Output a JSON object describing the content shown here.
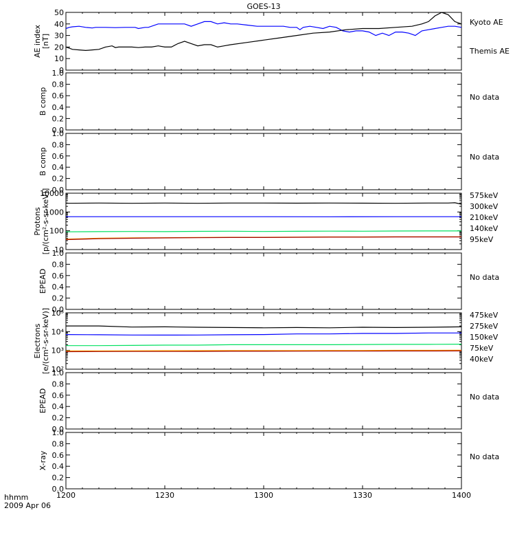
{
  "title": "GOES-13",
  "time_axis": {
    "label_line1": "hhmm",
    "label_line2": "2009 Apr 06",
    "range": [
      0,
      120
    ],
    "ticks": [
      {
        "t": 0,
        "label": "1200"
      },
      {
        "t": 30,
        "label": "1230"
      },
      {
        "t": 60,
        "label": "1300"
      },
      {
        "t": 90,
        "label": "1330"
      },
      {
        "t": 120,
        "label": "1400"
      }
    ]
  },
  "colors": {
    "black": "#000000",
    "blue": "#0000ff",
    "green": "#00e060",
    "orange": "#ffa500",
    "darkred": "#a00000"
  },
  "chart_data": [
    {
      "type": "line",
      "ylabel": [
        "AE index",
        "[nT]"
      ],
      "scale": "linear",
      "ylim": [
        0,
        50
      ],
      "ticks": [
        {
          "v": 0,
          "label": "0"
        },
        {
          "v": 10,
          "label": "10"
        },
        {
          "v": 20,
          "label": "20"
        },
        {
          "v": 30,
          "label": "30"
        },
        {
          "v": 40,
          "label": "40"
        },
        {
          "v": 50,
          "label": "50"
        }
      ],
      "legend": [
        {
          "text": "Kyoto AE",
          "color": "#0000ff"
        },
        {
          "text": "Themis AE",
          "color": "#000000"
        }
      ],
      "series": [
        {
          "name": "Kyoto AE",
          "color": "#0000ff",
          "t": [
            0,
            1,
            2,
            4,
            6,
            8,
            9,
            10,
            12,
            15,
            18,
            20,
            21,
            22,
            24,
            25,
            28,
            30,
            32,
            34,
            36,
            38,
            40,
            42,
            44,
            46,
            48,
            50,
            52,
            55,
            58,
            60,
            62,
            64,
            66,
            68,
            70,
            71,
            72,
            74,
            76,
            78,
            80,
            82,
            84,
            86,
            88,
            90,
            92,
            94,
            96,
            98,
            100,
            102,
            104,
            106,
            108,
            110,
            112,
            114,
            116,
            118,
            120
          ],
          "values": [
            36,
            37,
            37.5,
            38,
            37,
            36.5,
            37,
            37,
            37,
            36.8,
            37,
            37,
            37,
            36,
            37,
            37,
            40,
            40,
            40,
            40,
            40,
            38,
            40,
            42,
            42,
            40,
            41,
            40,
            40,
            39,
            38,
            38,
            38,
            38,
            38,
            37,
            37,
            35,
            37,
            38,
            37,
            36,
            38,
            37,
            34,
            33,
            34,
            34,
            33,
            30,
            32,
            30,
            33,
            33,
            32,
            30,
            34,
            35,
            36,
            37,
            38,
            38,
            37
          ]
        },
        {
          "name": "Themis AE",
          "color": "#000000",
          "t": [
            0,
            1,
            2,
            4,
            6,
            8,
            10,
            12,
            14,
            15,
            16,
            18,
            20,
            22,
            24,
            26,
            28,
            30,
            32,
            34,
            36,
            38,
            40,
            42,
            44,
            46,
            48,
            50,
            55,
            60,
            65,
            70,
            75,
            80,
            85,
            90,
            95,
            100,
            105,
            108,
            110,
            112,
            114,
            116,
            118,
            120
          ],
          "values": [
            20,
            19,
            18,
            17.5,
            17,
            17.5,
            18,
            20,
            21,
            19.5,
            20,
            20,
            20,
            19.5,
            20,
            20,
            21,
            20,
            20,
            23,
            25,
            23,
            21,
            22,
            22,
            20,
            21,
            22,
            24,
            26,
            28,
            30,
            32,
            33,
            35,
            36,
            36,
            37,
            38,
            40,
            42,
            47,
            50,
            48,
            42,
            40
          ]
        }
      ]
    },
    {
      "type": "line",
      "ylabel": [
        "B comp"
      ],
      "scale": "linear",
      "ylim": [
        0,
        1
      ],
      "ticks": [
        {
          "v": 0,
          "label": "0.0"
        },
        {
          "v": 0.2,
          "label": "0.2"
        },
        {
          "v": 0.4,
          "label": "0.4"
        },
        {
          "v": 0.6,
          "label": "0.6"
        },
        {
          "v": 0.8,
          "label": "0.8"
        },
        {
          "v": 1,
          "label": "1.0"
        }
      ],
      "legend": [
        {
          "text": "No data",
          "color": "#000000"
        }
      ],
      "series": []
    },
    {
      "type": "line",
      "ylabel": [
        "B comp"
      ],
      "scale": "linear",
      "ylim": [
        0,
        1
      ],
      "ticks": [
        {
          "v": 0,
          "label": "0.0"
        },
        {
          "v": 0.2,
          "label": "0.2"
        },
        {
          "v": 0.4,
          "label": "0.4"
        },
        {
          "v": 0.6,
          "label": "0.6"
        },
        {
          "v": 0.8,
          "label": "0.8"
        },
        {
          "v": 1,
          "label": "1.0"
        }
      ],
      "legend": [
        {
          "text": "No data",
          "color": "#000000"
        }
      ],
      "series": []
    },
    {
      "type": "line",
      "ylabel": [
        "Protons",
        "[p/(cm²-s-sr-keV)]"
      ],
      "scale": "log",
      "ylim": [
        10,
        10000
      ],
      "ticks": [
        {
          "v": 10,
          "label": "10"
        },
        {
          "v": 100,
          "label": "100"
        },
        {
          "v": 1000,
          "label": "1000"
        },
        {
          "v": 10000,
          "label": "10000"
        }
      ],
      "legend": [
        {
          "text": "575keV",
          "color": "#a00000"
        },
        {
          "text": "300keV",
          "color": "#ffa500"
        },
        {
          "text": "210keV",
          "color": "#00e060"
        },
        {
          "text": "140keV",
          "color": "#0000ff"
        },
        {
          "text": "95keV",
          "color": "#000000"
        }
      ],
      "series": [
        {
          "name": "95keV",
          "color": "#000000",
          "t": [
            0,
            10,
            20,
            30,
            40,
            50,
            60,
            70,
            80,
            90,
            100,
            110,
            116,
            118,
            120
          ],
          "values": [
            2900,
            3000,
            2900,
            3000,
            2900,
            3000,
            3000,
            2950,
            3000,
            2950,
            2900,
            3000,
            3000,
            3100,
            2600
          ]
        },
        {
          "name": "140keV",
          "color": "#0000ff",
          "t": [
            0,
            20,
            40,
            60,
            80,
            100,
            120
          ],
          "values": [
            560,
            560,
            560,
            560,
            555,
            560,
            560
          ]
        },
        {
          "name": "210keV",
          "color": "#00e060",
          "t": [
            0,
            10,
            20,
            30,
            40,
            50,
            60,
            70,
            80,
            90,
            100,
            110,
            120
          ],
          "values": [
            88,
            90,
            92,
            90,
            93,
            95,
            92,
            94,
            96,
            95,
            97,
            98,
            98
          ]
        },
        {
          "name": "300keV",
          "color": "#ffa500",
          "t": [
            0,
            10,
            20,
            30,
            40,
            50,
            60,
            70,
            80,
            90,
            100,
            110,
            120
          ],
          "values": [
            36,
            40,
            42,
            43,
            44,
            45,
            45,
            46,
            47,
            47,
            48,
            48,
            48
          ]
        },
        {
          "name": "575keV",
          "color": "#a00000",
          "t": [
            0,
            10,
            20,
            30,
            40,
            50,
            60,
            70,
            80,
            90,
            100,
            110,
            120
          ],
          "values": [
            34,
            38,
            40,
            42,
            43,
            44,
            44,
            45,
            46,
            46,
            47,
            47,
            47
          ]
        }
      ]
    },
    {
      "type": "line",
      "ylabel": [
        "EPEAD"
      ],
      "scale": "linear",
      "ylim": [
        0,
        1
      ],
      "ticks": [
        {
          "v": 0,
          "label": "0.0"
        },
        {
          "v": 0.2,
          "label": "0.2"
        },
        {
          "v": 0.4,
          "label": "0.4"
        },
        {
          "v": 0.6,
          "label": "0.6"
        },
        {
          "v": 0.8,
          "label": "0.8"
        },
        {
          "v": 1,
          "label": "1.0"
        }
      ],
      "legend": [
        {
          "text": "No data",
          "color": "#000000"
        }
      ],
      "series": []
    },
    {
      "type": "line",
      "ylabel": [
        "Electrons",
        "[e/(cm²-s-sr-keV)]"
      ],
      "scale": "log",
      "ylim": [
        100,
        100000
      ],
      "ticks": [
        {
          "v": 100,
          "label": "10²"
        },
        {
          "v": 1000,
          "label": "10³"
        },
        {
          "v": 10000,
          "label": "10⁴"
        },
        {
          "v": 100000,
          "label": "10⁵"
        }
      ],
      "legend": [
        {
          "text": "475keV",
          "color": "#a00000"
        },
        {
          "text": "275keV",
          "color": "#ffa500"
        },
        {
          "text": "150keV",
          "color": "#00e060"
        },
        {
          "text": "75keV",
          "color": "#0000ff"
        },
        {
          "text": "40keV",
          "color": "#000000"
        }
      ],
      "series": [
        {
          "name": "40keV",
          "color": "#000000",
          "t": [
            0,
            10,
            20,
            30,
            40,
            50,
            60,
            70,
            80,
            90,
            100,
            110,
            120
          ],
          "values": [
            20000,
            20000,
            17500,
            18000,
            17000,
            16500,
            16000,
            16500,
            16000,
            17000,
            16500,
            17000,
            18000
          ]
        },
        {
          "name": "75keV",
          "color": "#0000ff",
          "t": [
            0,
            10,
            20,
            30,
            40,
            50,
            60,
            70,
            80,
            90,
            100,
            110,
            120
          ],
          "values": [
            7000,
            6800,
            6600,
            6500,
            6600,
            6800,
            7000,
            7500,
            7500,
            8000,
            8000,
            8500,
            8500
          ]
        },
        {
          "name": "150keV",
          "color": "#00e060",
          "t": [
            0,
            10,
            20,
            30,
            40,
            50,
            60,
            70,
            80,
            90,
            100,
            110,
            120
          ],
          "values": [
            1800,
            1800,
            1850,
            1900,
            1900,
            2000,
            2000,
            2000,
            2000,
            2050,
            2100,
            2100,
            2150
          ]
        },
        {
          "name": "275keV",
          "color": "#ffa500",
          "t": [
            0,
            10,
            20,
            30,
            40,
            50,
            60,
            70,
            80,
            90,
            100,
            110,
            120
          ],
          "values": [
            950,
            950,
            960,
            970,
            970,
            980,
            990,
            990,
            1000,
            1000,
            1010,
            1010,
            1020
          ]
        },
        {
          "name": "475keV",
          "color": "#a00000",
          "t": [
            0,
            10,
            20,
            30,
            40,
            50,
            60,
            70,
            80,
            90,
            100,
            110,
            120
          ],
          "values": [
            860,
            870,
            880,
            880,
            890,
            900,
            900,
            910,
            920,
            920,
            930,
            930,
            940
          ]
        }
      ]
    },
    {
      "type": "line",
      "ylabel": [
        "EPEAD"
      ],
      "scale": "linear",
      "ylim": [
        0,
        1
      ],
      "ticks": [
        {
          "v": 0,
          "label": "0.0"
        },
        {
          "v": 0.2,
          "label": "0.2"
        },
        {
          "v": 0.4,
          "label": "0.4"
        },
        {
          "v": 0.6,
          "label": "0.6"
        },
        {
          "v": 0.8,
          "label": "0.8"
        },
        {
          "v": 1,
          "label": "1.0"
        }
      ],
      "legend": [
        {
          "text": "No data",
          "color": "#000000"
        }
      ],
      "series": []
    },
    {
      "type": "line",
      "ylabel": [
        "X-ray"
      ],
      "scale": "linear",
      "ylim": [
        0,
        1
      ],
      "ticks": [
        {
          "v": 0,
          "label": "0.0"
        },
        {
          "v": 0.2,
          "label": "0.2"
        },
        {
          "v": 0.4,
          "label": "0.4"
        },
        {
          "v": 0.6,
          "label": "0.6"
        },
        {
          "v": 0.8,
          "label": "0.8"
        },
        {
          "v": 1,
          "label": "1.0"
        }
      ],
      "legend": [
        {
          "text": "No data",
          "color": "#000000"
        }
      ],
      "series": []
    }
  ]
}
